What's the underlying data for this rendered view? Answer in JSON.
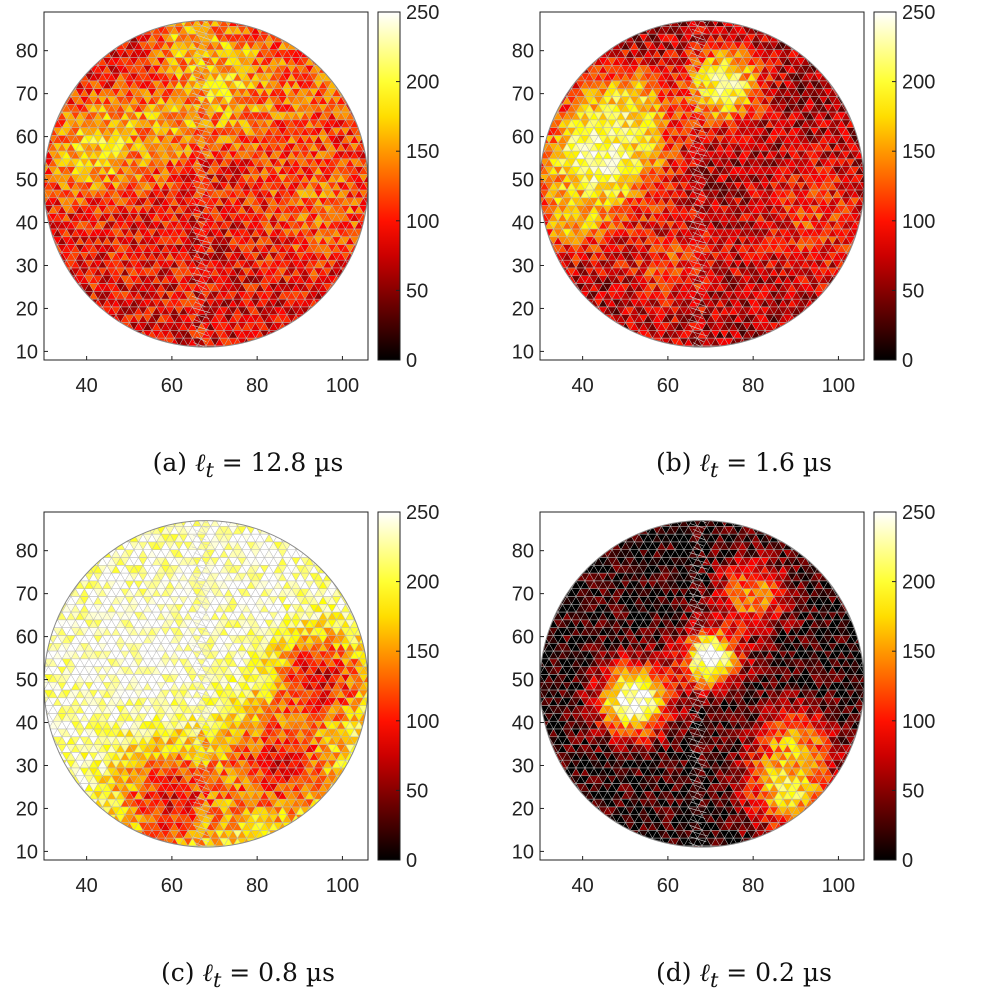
{
  "chart_data": [
    {
      "type": "heatmap",
      "caption_id": "(a)",
      "caption_value": "12.8 µs",
      "xlim": [
        30,
        106
      ],
      "ylim": [
        8,
        89
      ],
      "xticks": [
        40,
        60,
        80,
        100
      ],
      "yticks": [
        10,
        20,
        30,
        40,
        50,
        60,
        70,
        80
      ],
      "colorbar": {
        "min": 0,
        "max": 250,
        "ticks": [
          0,
          50,
          100,
          150,
          200,
          250
        ],
        "colormap": "hot"
      },
      "domain": {
        "shape": "circle",
        "center": [
          68,
          49
        ],
        "radius": 38
      },
      "hotspots": [
        {
          "x": 45,
          "y": 55,
          "value": 210,
          "sigma": 10
        },
        {
          "x": 75,
          "y": 72,
          "value": 200,
          "sigma": 9
        },
        {
          "x": 65,
          "y": 82,
          "value": 170,
          "sigma": 6
        },
        {
          "x": 60,
          "y": 62,
          "value": 160,
          "sigma": 6
        },
        {
          "x": 90,
          "y": 72,
          "value": 130,
          "sigma": 12
        },
        {
          "x": 95,
          "y": 45,
          "value": 130,
          "sigma": 12
        },
        {
          "x": 50,
          "y": 35,
          "value": 95,
          "sigma": 14
        }
      ],
      "base_value": 80
    },
    {
      "type": "heatmap",
      "caption_id": "(b)",
      "caption_value": "1.6 µs",
      "xlim": [
        30,
        106
      ],
      "ylim": [
        8,
        89
      ],
      "xticks": [
        40,
        60,
        80,
        100
      ],
      "yticks": [
        10,
        20,
        30,
        40,
        50,
        60,
        70,
        80
      ],
      "colorbar": {
        "min": 0,
        "max": 250,
        "ticks": [
          0,
          50,
          100,
          150,
          200,
          250
        ],
        "colormap": "hot"
      },
      "domain": {
        "shape": "circle",
        "center": [
          68,
          49
        ],
        "radius": 38
      },
      "hotspots": [
        {
          "x": 44,
          "y": 55,
          "value": 250,
          "sigma": 9
        },
        {
          "x": 50,
          "y": 65,
          "value": 200,
          "sigma": 7
        },
        {
          "x": 73,
          "y": 72,
          "value": 220,
          "sigma": 6
        },
        {
          "x": 38,
          "y": 42,
          "value": 170,
          "sigma": 6
        },
        {
          "x": 95,
          "y": 40,
          "value": 110,
          "sigma": 10
        },
        {
          "x": 60,
          "y": 30,
          "value": 110,
          "sigma": 8
        }
      ],
      "base_value": 60
    },
    {
      "type": "heatmap",
      "caption_id": "(c)",
      "caption_value": "0.8 µs",
      "xlim": [
        30,
        106
      ],
      "ylim": [
        8,
        89
      ],
      "xticks": [
        40,
        60,
        80,
        100
      ],
      "yticks": [
        10,
        20,
        30,
        40,
        50,
        60,
        70,
        80
      ],
      "colorbar": {
        "min": 0,
        "max": 250,
        "ticks": [
          0,
          50,
          100,
          150,
          200,
          250
        ],
        "colormap": "hot"
      },
      "domain": {
        "shape": "circle",
        "center": [
          68,
          49
        ],
        "radius": 38
      },
      "hotspots": [
        {
          "x": 55,
          "y": 55,
          "value": 255,
          "sigma": 14
        },
        {
          "x": 75,
          "y": 75,
          "value": 250,
          "sigma": 10
        },
        {
          "x": 85,
          "y": 30,
          "value": 90,
          "sigma": 10
        },
        {
          "x": 60,
          "y": 22,
          "value": 90,
          "sigma": 10
        },
        {
          "x": 95,
          "y": 50,
          "value": 80,
          "sigma": 8
        }
      ],
      "base_value": 230
    },
    {
      "type": "heatmap",
      "caption_id": "(d)",
      "caption_value": "0.2 µs",
      "xlim": [
        30,
        106
      ],
      "ylim": [
        8,
        89
      ],
      "xticks": [
        40,
        60,
        80,
        100
      ],
      "yticks": [
        10,
        20,
        30,
        40,
        50,
        60,
        70,
        80
      ],
      "colorbar": {
        "min": 0,
        "max": 250,
        "ticks": [
          0,
          50,
          100,
          150,
          200,
          250
        ],
        "colormap": "hot"
      },
      "domain": {
        "shape": "circle",
        "center": [
          68,
          49
        ],
        "radius": 38
      },
      "hotspots": [
        {
          "x": 52,
          "y": 45,
          "value": 255,
          "sigma": 6
        },
        {
          "x": 70,
          "y": 55,
          "value": 250,
          "sigma": 5
        },
        {
          "x": 88,
          "y": 25,
          "value": 200,
          "sigma": 7
        },
        {
          "x": 90,
          "y": 35,
          "value": 160,
          "sigma": 6
        },
        {
          "x": 80,
          "y": 70,
          "value": 150,
          "sigma": 6
        }
      ],
      "base_value": 10
    }
  ]
}
